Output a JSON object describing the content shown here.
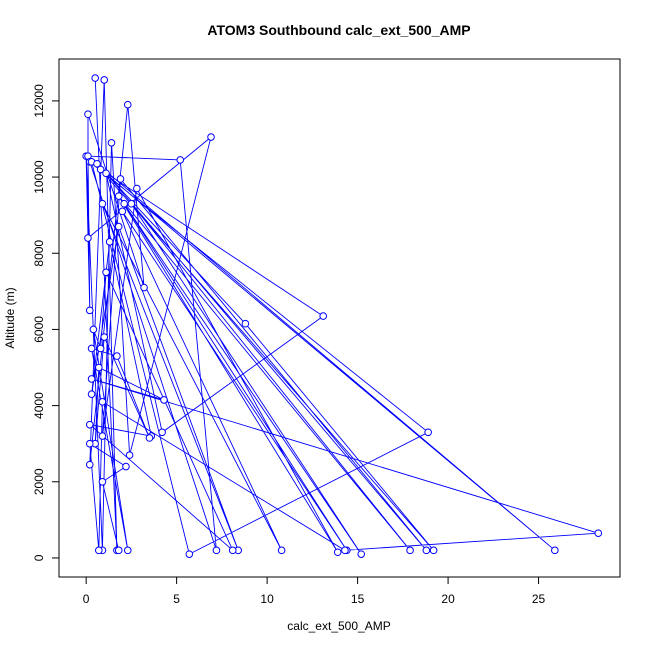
{
  "chart_data": {
    "type": "line",
    "title": "ATOM3 Southbound calc_ext_500_AMP",
    "xlabel": "calc_ext_500_AMP",
    "ylabel": "Altitude (m)",
    "xlim": [
      -1.5,
      29.5
    ],
    "ylim": [
      -500,
      13100
    ],
    "xticks": [
      0,
      5,
      10,
      15,
      20,
      25
    ],
    "yticks": [
      0,
      2000,
      4000,
      6000,
      8000,
      10000,
      12000
    ],
    "grid": false,
    "markers": "open-circle",
    "color": "#0000ff",
    "series": [
      {
        "name": "",
        "points": [
          [
            0.5,
            12600
          ],
          [
            1.7,
            200
          ],
          [
            1.0,
            12550
          ],
          [
            0.2,
            2450
          ],
          [
            2.3,
            11900
          ],
          [
            3.2,
            7100
          ],
          [
            0.1,
            11650
          ],
          [
            0.1,
            8400
          ],
          [
            6.9,
            11050
          ],
          [
            2.4,
            2700
          ],
          [
            1.4,
            10900
          ],
          [
            0.9,
            200
          ],
          [
            0.0,
            10550
          ],
          [
            0.2,
            6500
          ],
          [
            0.1,
            10550
          ],
          [
            5.2,
            10450
          ],
          [
            7.2,
            200
          ],
          [
            0.2,
            10400
          ],
          [
            18.9,
            3300
          ],
          [
            5.7,
            100
          ],
          [
            0.3,
            10400
          ],
          [
            25.9,
            200
          ],
          [
            0.6,
            10350
          ],
          [
            8.8,
            6150
          ],
          [
            19.2,
            200
          ],
          [
            0.8,
            10200
          ],
          [
            13.1,
            6350
          ],
          [
            4.2,
            3300
          ],
          [
            1.1,
            10100
          ],
          [
            18.8,
            200
          ],
          [
            1.9,
            9950
          ],
          [
            0.9,
            3200
          ],
          [
            2.8,
            9700
          ],
          [
            13.9,
            150
          ],
          [
            1.8,
            9500
          ],
          [
            17.9,
            200
          ],
          [
            2.5,
            9300
          ],
          [
            15.2,
            100
          ],
          [
            2.1,
            9300
          ],
          [
            14.4,
            200
          ],
          [
            2.0,
            9100
          ],
          [
            10.8,
            200
          ],
          [
            0.9,
            9300
          ],
          [
            8.4,
            200
          ],
          [
            1.8,
            8700
          ],
          [
            0.3,
            4300
          ],
          [
            1.3,
            8300
          ],
          [
            3.6,
            3200
          ],
          [
            0.2,
            3500
          ],
          [
            8.1,
            200
          ],
          [
            1.1,
            7500
          ],
          [
            0.8,
            5500
          ],
          [
            0.4,
            6000
          ],
          [
            2.3,
            200
          ],
          [
            0.3,
            5500
          ],
          [
            1.7,
            5300
          ],
          [
            3.5,
            3150
          ],
          [
            1.0,
            5800
          ],
          [
            0.5,
            3000
          ],
          [
            0.7,
            5000
          ],
          [
            4.3,
            4150
          ],
          [
            0.3,
            4700
          ],
          [
            28.3,
            650
          ],
          [
            14.3,
            200
          ],
          [
            0.9,
            4100
          ],
          [
            0.7,
            200
          ],
          [
            0.2,
            3000
          ],
          [
            2.2,
            2400
          ],
          [
            0.9,
            2000
          ],
          [
            1.8,
            200
          ]
        ]
      }
    ]
  }
}
